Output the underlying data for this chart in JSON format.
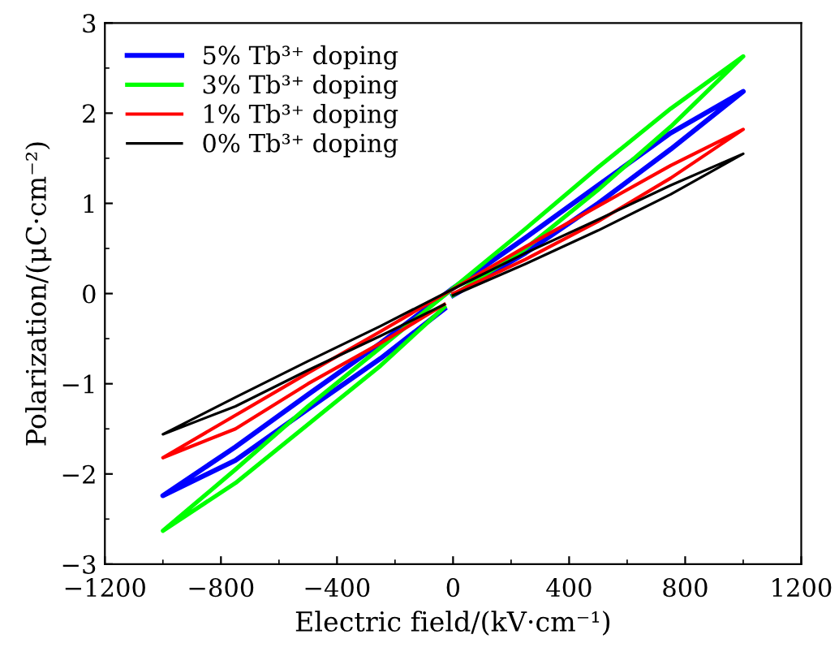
{
  "chart_data": {
    "type": "line",
    "xlabel": "Electric field/(kV·cm⁻¹)",
    "ylabel": "Polarization/(μC·cm⁻²)",
    "xlim": [
      -1200,
      1200
    ],
    "xticks": [
      {
        "value": -1200,
        "label": "−1200"
      },
      {
        "value": -800,
        "label": "−800"
      },
      {
        "value": -400,
        "label": "−400"
      },
      0,
      400,
      800,
      1200
    ],
    "ylim": [
      -3,
      3
    ],
    "yticks": [
      {
        "value": -3,
        "label": "−3"
      },
      {
        "value": -2,
        "label": "−2"
      },
      {
        "value": -1,
        "label": "−1"
      },
      0,
      1,
      2,
      3
    ],
    "grid": false,
    "legend": "top left",
    "marker": "none",
    "line_style": "solid",
    "series": [
      {
        "name": "5% Tb³⁺ doping",
        "color": "#0000ff",
        "x": [
          0,
          250,
          500,
          750,
          1000,
          750,
          500,
          250,
          0,
          -250,
          -500,
          -750,
          -1000,
          -750,
          -500,
          -250,
          -30
        ],
        "values": [
          -0.02,
          0.45,
          1.0,
          1.6,
          2.24,
          1.78,
          1.2,
          0.62,
          0.06,
          -0.55,
          -1.12,
          -1.7,
          -2.24,
          -1.85,
          -1.28,
          -0.72,
          -0.17
        ]
      },
      {
        "name": "3% Tb³⁺ doping",
        "color": "#00ff00",
        "x": [
          0,
          250,
          500,
          750,
          1000,
          750,
          500,
          250,
          0,
          -250,
          -500,
          -750,
          -1000,
          -750,
          -500,
          -250,
          -30
        ],
        "values": [
          -0.02,
          0.5,
          1.15,
          1.85,
          2.63,
          2.05,
          1.4,
          0.72,
          0.06,
          -0.6,
          -1.25,
          -1.95,
          -2.63,
          -2.1,
          -1.45,
          -0.8,
          -0.15
        ]
      },
      {
        "name": "1% Tb³⁺ doping",
        "color": "#ff0000",
        "x": [
          0,
          250,
          500,
          750,
          1000,
          750,
          500,
          250,
          0,
          -250,
          -500,
          -750,
          -1000,
          -750,
          -500,
          -250,
          -30
        ],
        "values": [
          0.0,
          0.38,
          0.8,
          1.28,
          1.82,
          1.42,
          0.97,
          0.52,
          0.05,
          -0.42,
          -0.88,
          -1.35,
          -1.82,
          -1.5,
          -1.0,
          -0.55,
          -0.12
        ]
      },
      {
        "name": "0% Tb³⁺ doping",
        "color": "#000000",
        "x": [
          0,
          250,
          500,
          750,
          1000,
          750,
          500,
          250,
          0,
          -250,
          -500,
          -750,
          -1000,
          -750,
          -500,
          -250,
          -30
        ],
        "values": [
          -0.02,
          0.33,
          0.7,
          1.1,
          1.55,
          1.2,
          0.82,
          0.45,
          0.05,
          -0.36,
          -0.75,
          -1.15,
          -1.56,
          -1.25,
          -0.85,
          -0.47,
          -0.12
        ]
      }
    ]
  }
}
